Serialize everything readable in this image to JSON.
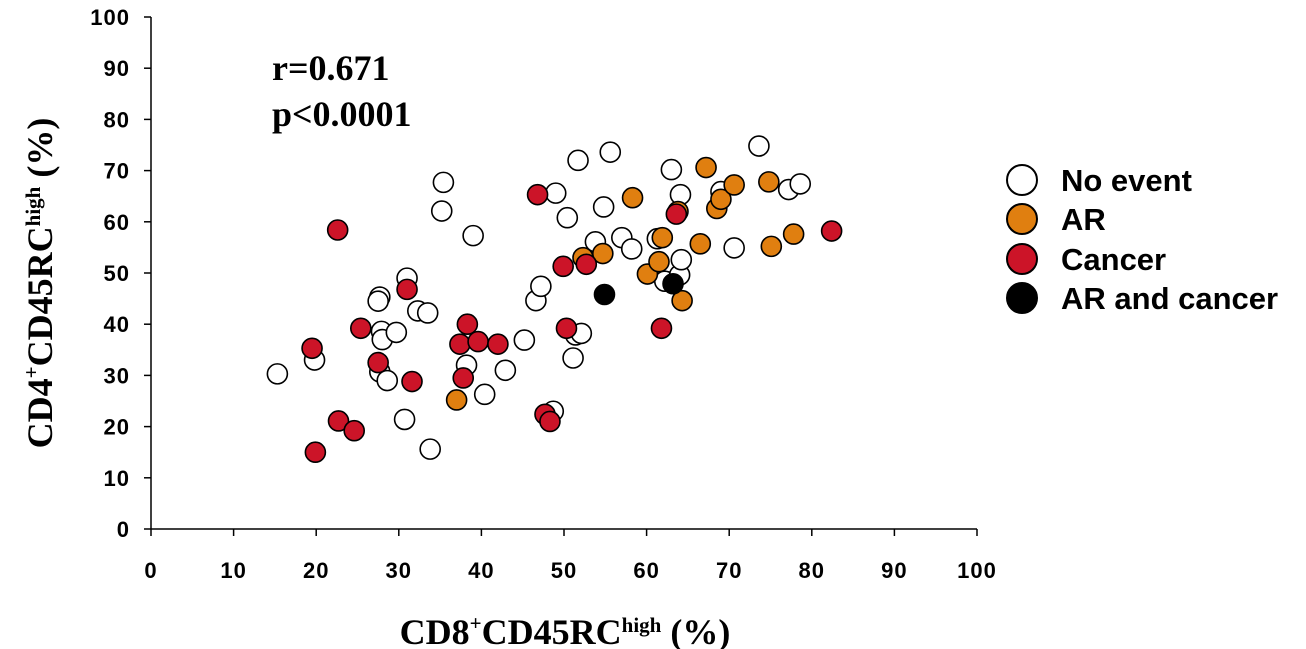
{
  "chart_data": {
    "type": "scatter",
    "x_axis": {
      "label_main": "CD8",
      "label_sup": "+",
      "label_rest": "CD45RC",
      "label_super2": "high",
      "label_unit": " (%)",
      "range": [
        0,
        100
      ],
      "ticks": [
        "0",
        "10",
        "20",
        "30",
        "40",
        "50",
        "60",
        "70",
        "80",
        "90",
        "100"
      ]
    },
    "y_axis": {
      "label_main": "CD4",
      "label_sup": "+",
      "label_rest": "CD45RC",
      "label_super2": "high",
      "label_unit": " (%)",
      "range": [
        0,
        100
      ],
      "ticks": [
        "0",
        "10",
        "20",
        "30",
        "40",
        "50",
        "60",
        "70",
        "80",
        "90",
        "100"
      ]
    },
    "annotations": {
      "r": "r=0.671",
      "p": "p<0.0001"
    },
    "grid": false,
    "legend_position": "right",
    "series": [
      {
        "name": "No event",
        "color": "#ffffff",
        "points": [
          [
            15.3,
            30.3
          ],
          [
            19.8,
            33.0
          ],
          [
            27.7,
            45.3
          ],
          [
            27.5,
            44.5
          ],
          [
            27.9,
            38.6
          ],
          [
            28.0,
            37.0
          ],
          [
            27.7,
            30.7
          ],
          [
            28.6,
            29.0
          ],
          [
            29.7,
            38.4
          ],
          [
            31.0,
            49.0
          ],
          [
            30.7,
            21.4
          ],
          [
            32.3,
            42.6
          ],
          [
            33.5,
            42.2
          ],
          [
            33.8,
            15.6
          ],
          [
            35.2,
            62.1
          ],
          [
            35.4,
            67.7
          ],
          [
            38.2,
            32.0
          ],
          [
            39.0,
            57.3
          ],
          [
            40.4,
            26.3
          ],
          [
            42.9,
            31.0
          ],
          [
            45.2,
            36.9
          ],
          [
            46.6,
            44.6
          ],
          [
            47.2,
            47.4
          ],
          [
            48.7,
            23.0
          ],
          [
            49.0,
            65.6
          ],
          [
            50.4,
            60.8
          ],
          [
            51.1,
            33.4
          ],
          [
            51.4,
            37.9
          ],
          [
            52.1,
            38.2
          ],
          [
            51.7,
            72.0
          ],
          [
            53.8,
            56.1
          ],
          [
            54.8,
            62.9
          ],
          [
            55.6,
            73.6
          ],
          [
            57.0,
            56.9
          ],
          [
            58.2,
            54.7
          ],
          [
            61.3,
            56.7
          ],
          [
            62.2,
            48.4
          ],
          [
            63.0,
            70.2
          ],
          [
            64.0,
            49.6
          ],
          [
            64.2,
            52.6
          ],
          [
            64.1,
            65.3
          ],
          [
            69.0,
            65.9
          ],
          [
            70.6,
            54.9
          ],
          [
            73.6,
            74.8
          ],
          [
            77.2,
            66.3
          ],
          [
            78.6,
            67.4
          ]
        ]
      },
      {
        "name": "AR",
        "color": "#e07f10",
        "points": [
          [
            37.0,
            25.2
          ],
          [
            52.3,
            53.0
          ],
          [
            54.7,
            53.8
          ],
          [
            58.3,
            64.7
          ],
          [
            60.1,
            49.8
          ],
          [
            61.5,
            52.2
          ],
          [
            61.9,
            56.9
          ],
          [
            63.8,
            62.0
          ],
          [
            64.3,
            44.6
          ],
          [
            66.5,
            55.7
          ],
          [
            67.2,
            70.6
          ],
          [
            68.5,
            62.6
          ],
          [
            69.0,
            64.4
          ],
          [
            70.6,
            67.2
          ],
          [
            74.8,
            67.8
          ],
          [
            75.1,
            55.2
          ],
          [
            77.8,
            57.6
          ]
        ]
      },
      {
        "name": "Cancer",
        "color": "#cc1428",
        "points": [
          [
            19.5,
            35.3
          ],
          [
            19.9,
            15.0
          ],
          [
            22.6,
            58.4
          ],
          [
            22.7,
            21.1
          ],
          [
            24.6,
            19.2
          ],
          [
            25.4,
            39.2
          ],
          [
            27.5,
            32.5
          ],
          [
            31.0,
            46.8
          ],
          [
            31.6,
            28.8
          ],
          [
            37.4,
            36.1
          ],
          [
            37.8,
            29.5
          ],
          [
            38.3,
            40.0
          ],
          [
            39.6,
            36.6
          ],
          [
            42.0,
            36.1
          ],
          [
            46.8,
            65.3
          ],
          [
            47.7,
            22.4
          ],
          [
            48.3,
            21.0
          ],
          [
            49.9,
            51.3
          ],
          [
            50.3,
            39.2
          ],
          [
            52.7,
            51.7
          ],
          [
            61.8,
            39.2
          ],
          [
            63.6,
            61.5
          ],
          [
            82.4,
            58.2
          ]
        ]
      },
      {
        "name": "AR and cancer",
        "color": "#000000",
        "points": [
          [
            54.9,
            45.8
          ],
          [
            63.2,
            47.9
          ]
        ]
      }
    ]
  }
}
